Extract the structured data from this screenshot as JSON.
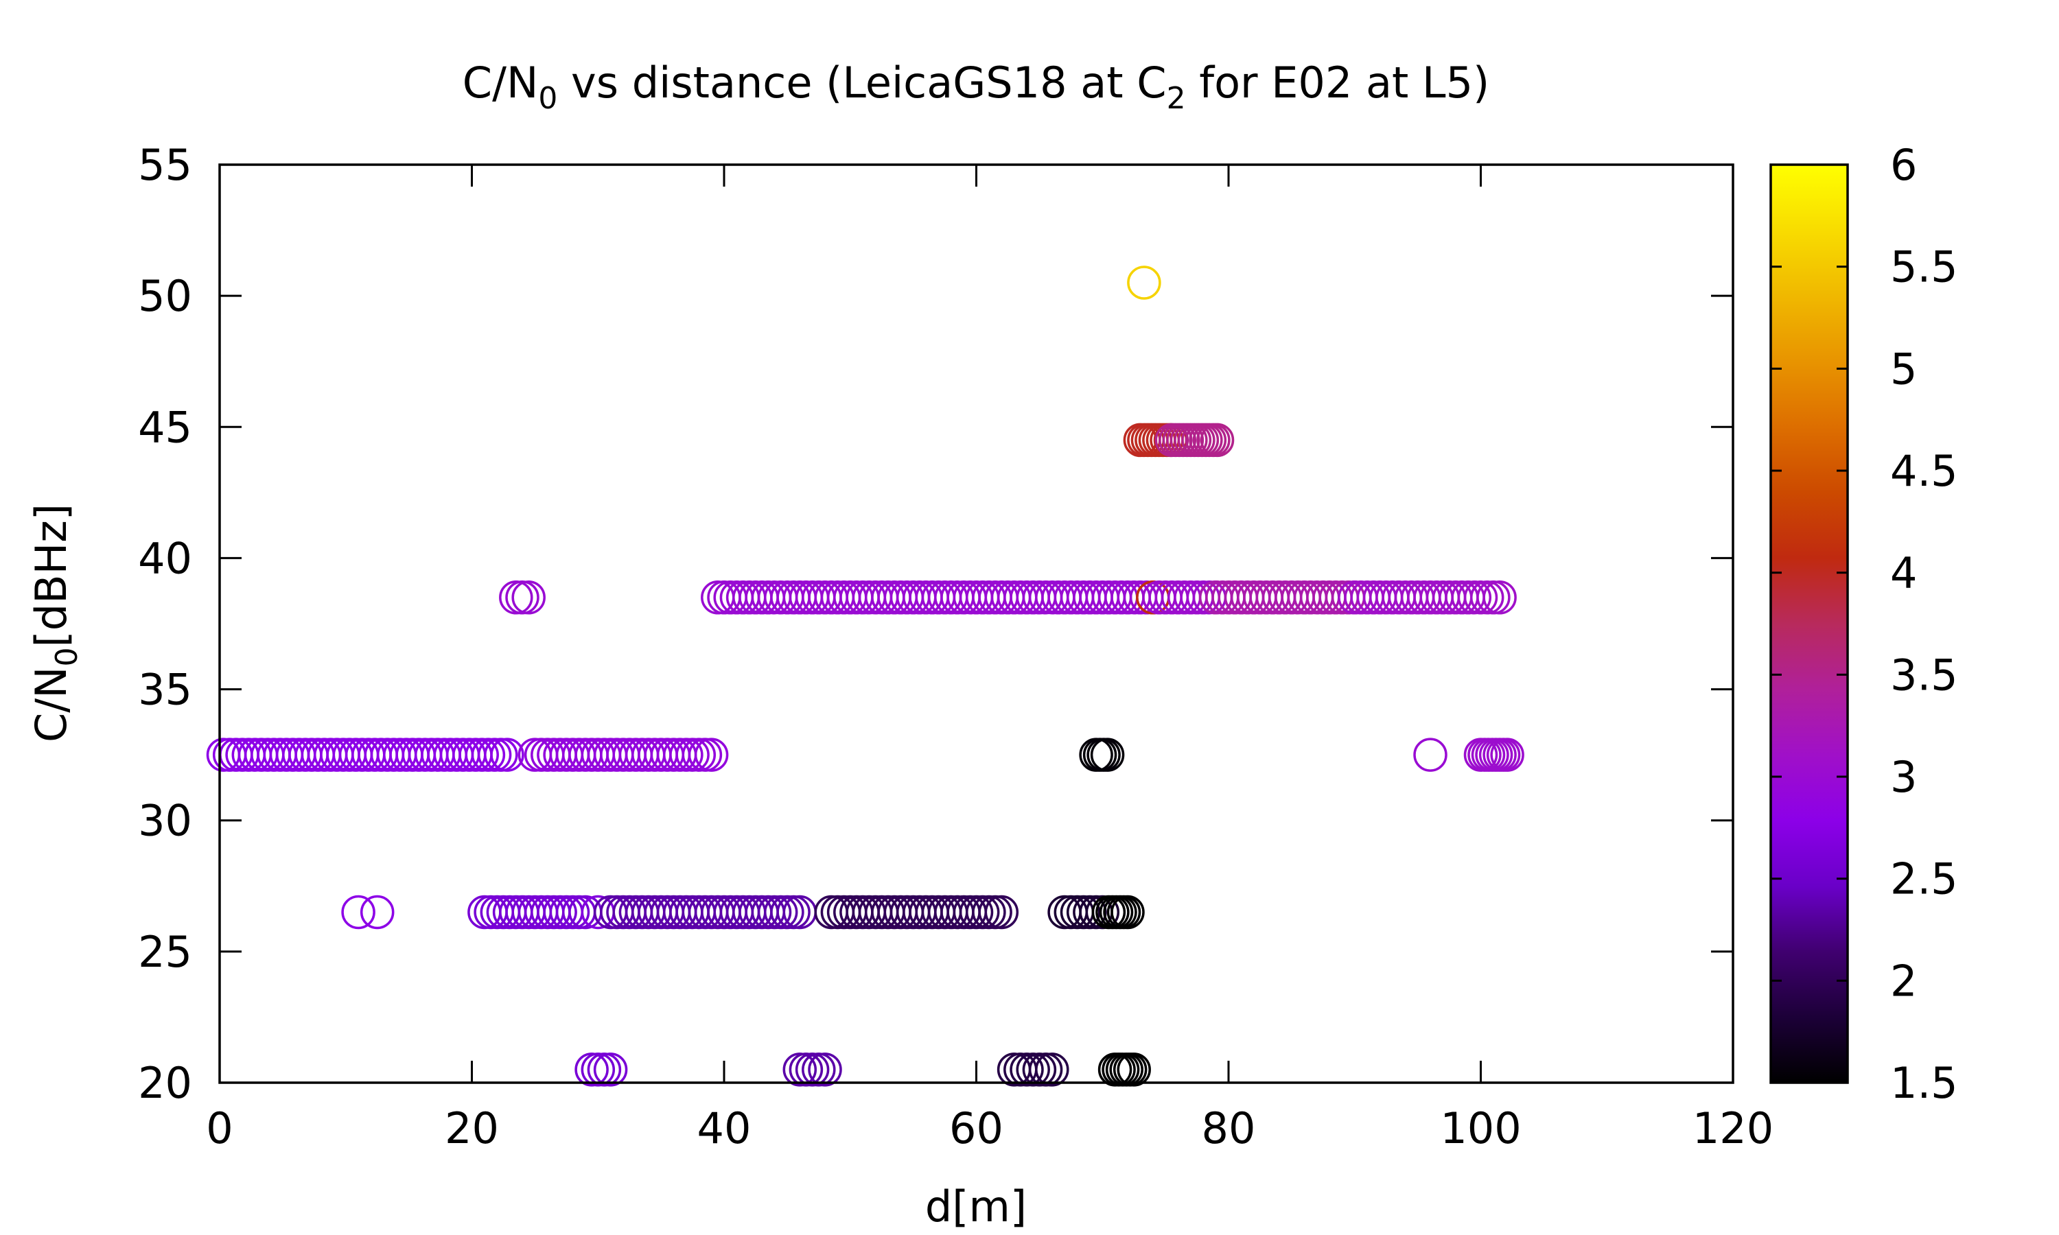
{
  "chart_data": {
    "type": "scatter",
    "title": "C/N0 vs distance (LeicaGS18 at C2 for E02 at L5)",
    "title_parts": {
      "p1": "C/N",
      "sub1": "0",
      "p2": " vs distance (LeicaGS18 at C",
      "sub2": "2",
      "p3": " for E02 at L5)"
    },
    "xlabel": "d[m]",
    "ylabel_parts": {
      "p1": "C/N",
      "sub1": "0",
      "p2": "[dBHz]"
    },
    "xlim": [
      0,
      120
    ],
    "ylim": [
      20,
      55
    ],
    "xticks": [
      0,
      20,
      40,
      60,
      80,
      100,
      120
    ],
    "yticks": [
      20,
      25,
      30,
      35,
      40,
      45,
      50,
      55
    ],
    "colorbar": {
      "range": [
        1.5,
        6
      ],
      "ticks": [
        "1.5",
        "2",
        "2.5",
        "3",
        "3.5",
        "4",
        "4.5",
        "5",
        "5.5",
        "6"
      ],
      "palette": [
        "#000000",
        "#1c0038",
        "#400070",
        "#6a00c8",
        "#8c00e8",
        "#a010c8",
        "#b0209a",
        "#b82a5c",
        "#c02a10",
        "#cc4a00",
        "#dd6e00",
        "#e89400",
        "#f0b800",
        "#f8dc00",
        "#ffff00"
      ]
    },
    "marker": "open-circle",
    "grid": false,
    "segments": [
      {
        "y": 32.5,
        "x_from": 0.3,
        "x_to": 23,
        "step": 0.5,
        "c": 2.8
      },
      {
        "y": 32.5,
        "x_from": 25,
        "x_to": 39,
        "step": 0.5,
        "c": 2.9
      },
      {
        "y": 32.5,
        "x_from": 69.5,
        "x_to": 70.5,
        "step": 0.3,
        "c": 1.55
      },
      {
        "y": 32.5,
        "x_from": 96,
        "x_to": 96,
        "step": 1,
        "c": 3.0
      },
      {
        "y": 32.5,
        "x_from": 100,
        "x_to": 102,
        "step": 0.3,
        "c": 3.05
      },
      {
        "y": 38.5,
        "x_from": 23.5,
        "x_to": 24.6,
        "step": 0.5,
        "c": 3.0
      },
      {
        "y": 38.5,
        "x_from": 39.5,
        "x_to": 74,
        "step": 0.5,
        "c": 3.0
      },
      {
        "y": 38.5,
        "x_from": 74,
        "x_to": 74,
        "step": 1,
        "c": 4.1
      },
      {
        "y": 38.5,
        "x_from": 74.5,
        "x_to": 79,
        "step": 0.5,
        "c": 3.05
      },
      {
        "y": 38.5,
        "x_from": 79,
        "x_to": 90,
        "step": 0.5,
        "c": 3.3
      },
      {
        "y": 38.5,
        "x_from": 90,
        "x_to": 101.3,
        "step": 0.5,
        "c": 3.1
      },
      {
        "y": 44.5,
        "x_from": 73,
        "x_to": 75.5,
        "step": 0.3,
        "c": 4.0
      },
      {
        "y": 44.5,
        "x_from": 75.5,
        "x_to": 79,
        "step": 0.3,
        "c": 3.5
      },
      {
        "y": 50.5,
        "x_from": 73.3,
        "x_to": 73.3,
        "step": 1,
        "c": 5.6
      },
      {
        "y": 26.5,
        "x_from": 11,
        "x_to": 12.5,
        "step": 1.5,
        "c": 2.8
      },
      {
        "y": 26.5,
        "x_from": 21,
        "x_to": 29,
        "step": 0.5,
        "c": 2.6
      },
      {
        "y": 26.5,
        "x_from": 30,
        "x_to": 30,
        "step": 1,
        "c": 2.7
      },
      {
        "y": 26.5,
        "x_from": 31,
        "x_to": 46,
        "step": 0.5,
        "c": 2.35
      },
      {
        "y": 26.5,
        "x_from": 48.5,
        "x_to": 62,
        "step": 0.5,
        "c": 2.0
      },
      {
        "y": 26.5,
        "x_from": 67,
        "x_to": 70,
        "step": 0.5,
        "c": 1.8
      },
      {
        "y": 26.5,
        "x_from": 70.5,
        "x_to": 72,
        "step": 0.3,
        "c": 1.5
      },
      {
        "y": 20.5,
        "x_from": 29.5,
        "x_to": 31.2,
        "step": 0.5,
        "c": 2.6
      },
      {
        "y": 20.5,
        "x_from": 46,
        "x_to": 48,
        "step": 0.5,
        "c": 2.35
      },
      {
        "y": 20.5,
        "x_from": 63,
        "x_to": 66,
        "step": 0.5,
        "c": 1.9
      },
      {
        "y": 20.5,
        "x_from": 71,
        "x_to": 72.5,
        "step": 0.3,
        "c": 1.5
      }
    ]
  }
}
